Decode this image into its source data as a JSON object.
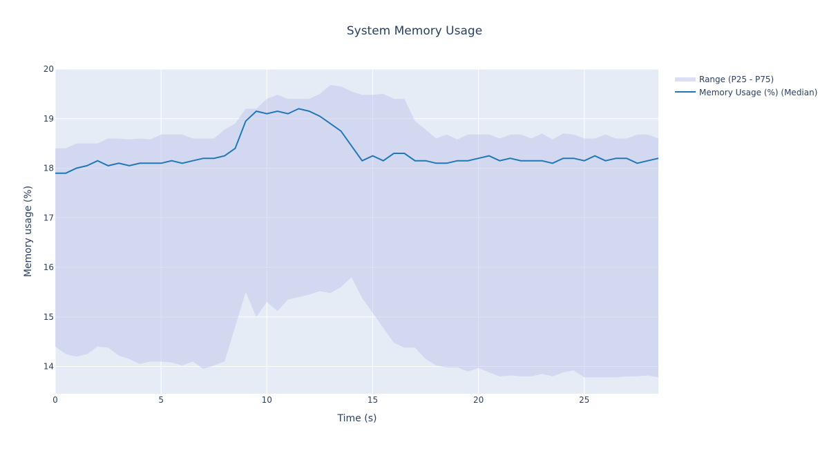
{
  "chart_data": {
    "type": "line",
    "title": "System Memory Usage",
    "xlabel": "Time (s)",
    "ylabel": "Memory usage (%)",
    "xlim": [
      0,
      28.5
    ],
    "ylim": [
      13.45,
      20
    ],
    "x_ticks": [
      "0",
      "5",
      "10",
      "15",
      "20",
      "25"
    ],
    "y_ticks": [
      "14",
      "15",
      "16",
      "17",
      "18",
      "19",
      "20"
    ],
    "grid": true,
    "legend_position": "top-right",
    "colors": {
      "median": "#1f77b4",
      "band": "#c5c8ec",
      "plot_bg": "#e5ecf6",
      "grid": "#ffffff"
    },
    "x": [
      0,
      0.5,
      1,
      1.5,
      2,
      2.5,
      3,
      3.5,
      4,
      4.5,
      5,
      5.5,
      6,
      6.5,
      7,
      7.5,
      8,
      8.5,
      9,
      9.5,
      10,
      10.5,
      11,
      11.5,
      12,
      12.5,
      13,
      13.5,
      14,
      14.5,
      15,
      15.5,
      16,
      16.5,
      17,
      17.5,
      18,
      18.5,
      19,
      19.5,
      20,
      20.5,
      21,
      21.5,
      22,
      22.5,
      23,
      23.5,
      24,
      24.5,
      25,
      25.5,
      26,
      26.5,
      27,
      27.5,
      28,
      28.5
    ],
    "series": [
      {
        "name": "Memory Usage (%) (Median)",
        "values": [
          17.9,
          17.9,
          18.0,
          18.05,
          18.15,
          18.05,
          18.1,
          18.05,
          18.1,
          18.1,
          18.1,
          18.15,
          18.1,
          18.15,
          18.2,
          18.2,
          18.25,
          18.4,
          18.95,
          19.15,
          19.1,
          19.15,
          19.1,
          19.2,
          19.15,
          19.05,
          18.9,
          18.75,
          18.45,
          18.15,
          18.25,
          18.15,
          18.3,
          18.3,
          18.15,
          18.15,
          18.1,
          18.1,
          18.15,
          18.15,
          18.2,
          18.25,
          18.15,
          18.2,
          18.15,
          18.15,
          18.15,
          18.1,
          18.2,
          18.2,
          18.15,
          18.25,
          18.15,
          18.2,
          18.2,
          18.1,
          18.15,
          18.2
        ]
      },
      {
        "name": "Range (P25 - P75)",
        "upper": [
          18.4,
          18.4,
          18.5,
          18.5,
          18.5,
          18.6,
          18.6,
          18.58,
          18.6,
          18.58,
          18.68,
          18.68,
          18.68,
          18.6,
          18.6,
          18.6,
          18.78,
          18.9,
          19.2,
          19.2,
          19.4,
          19.48,
          19.4,
          19.4,
          19.4,
          19.5,
          19.68,
          19.65,
          19.55,
          19.48,
          19.48,
          19.5,
          19.4,
          19.4,
          18.95,
          18.78,
          18.6,
          18.68,
          18.58,
          18.68,
          18.68,
          18.68,
          18.6,
          18.68,
          18.68,
          18.6,
          18.7,
          18.58,
          18.7,
          18.68,
          18.6,
          18.6,
          18.68,
          18.6,
          18.6,
          18.68,
          18.68,
          18.6
        ],
        "lower": [
          14.4,
          14.25,
          14.2,
          14.25,
          14.4,
          14.38,
          14.22,
          14.15,
          14.05,
          14.1,
          14.1,
          14.08,
          14.02,
          14.1,
          13.95,
          14.02,
          14.1,
          14.8,
          15.5,
          15.0,
          15.3,
          15.12,
          15.35,
          15.4,
          15.45,
          15.52,
          15.48,
          15.6,
          15.8,
          15.38,
          15.08,
          14.78,
          14.48,
          14.38,
          14.38,
          14.15,
          14.02,
          13.98,
          13.98,
          13.9,
          13.97,
          13.88,
          13.8,
          13.82,
          13.8,
          13.8,
          13.85,
          13.8,
          13.88,
          13.92,
          13.78,
          13.78,
          13.78,
          13.78,
          13.8,
          13.8,
          13.82,
          13.78
        ]
      }
    ]
  }
}
